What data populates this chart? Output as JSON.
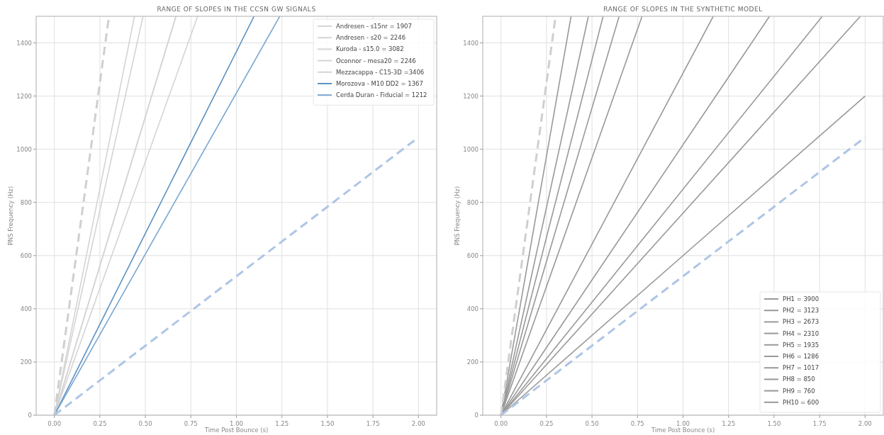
{
  "chart_data": [
    {
      "type": "line",
      "title": "RANGE OF SLOPES IN THE CCSN GW SIGNALS",
      "xlabel": "Time Post Bounce (s)",
      "ylabel": "PNS Frequency (Hz)",
      "xlim": [
        -0.1,
        2.1
      ],
      "ylim": [
        0,
        1500
      ],
      "xticks": [
        {
          "value": 0,
          "label": "0.00"
        },
        {
          "value": 0.25,
          "label": "0.25"
        },
        {
          "value": 0.5,
          "label": "0.50"
        },
        {
          "value": 0.75,
          "label": "0.75"
        },
        {
          "value": 1,
          "label": "1.00"
        },
        {
          "value": 1.25,
          "label": "1.25"
        },
        {
          "value": 1.5,
          "label": "1.50"
        },
        {
          "value": 1.75,
          "label": "1.75"
        },
        {
          "value": 2,
          "label": "2.00"
        }
      ],
      "yticks": [
        0,
        200,
        400,
        600,
        800,
        1000,
        1200,
        1400
      ],
      "grid": true,
      "legend": "top right",
      "series": [
        {
          "name": "Andresen - s15nr = 1907",
          "color": "#d4d4d4",
          "x": [
            0,
            0.787
          ],
          "values": [
            0,
            1500
          ]
        },
        {
          "name": "Andresen - s20 = 2246",
          "color": "#d4d4d4",
          "x": [
            0,
            0.668
          ],
          "values": [
            0,
            1500
          ]
        },
        {
          "name": "Kuroda - s15.0 = 3082",
          "color": "#d4d4d4",
          "x": [
            0,
            0.487
          ],
          "values": [
            0,
            1500
          ]
        },
        {
          "name": "Oconnor - mesa20 = 2246",
          "color": "#d4d4d4",
          "x": [
            0,
            0.668
          ],
          "values": [
            0,
            1500
          ]
        },
        {
          "name": "Mezzacappa - C15-3D =3406",
          "color": "#d4d4d4",
          "x": [
            0,
            0.44
          ],
          "values": [
            0,
            1500
          ]
        },
        {
          "name": "Morozova - M10 DD2 = 1367",
          "color": "#5b93c4",
          "x": [
            0,
            1.097
          ],
          "values": [
            0,
            1500
          ]
        },
        {
          "name": "Cerda Duran - Fiducial = 1212",
          "color": "#7aa7d0",
          "x": [
            0,
            1.238
          ],
          "values": [
            0,
            1500
          ]
        },
        {
          "color": "#cfcfcf",
          "line_style": "dashed",
          "x": [
            0,
            0.3
          ],
          "values": [
            0,
            1500
          ]
        },
        {
          "color": "#aec6e6",
          "line_style": "dashed",
          "x": [
            0,
            2
          ],
          "values": [
            0,
            1045
          ]
        }
      ]
    },
    {
      "type": "line",
      "title": "RANGE OF SLOPES IN THE SYNTHETIC MODEL",
      "xlabel": "Time Post Bounce (s)",
      "ylabel": "PNS Frequency (Hz)",
      "xlim": [
        -0.1,
        2.1
      ],
      "ylim": [
        0,
        1500
      ],
      "xticks": [
        {
          "value": 0,
          "label": "0.00"
        },
        {
          "value": 0.25,
          "label": "0.25"
        },
        {
          "value": 0.5,
          "label": "0.50"
        },
        {
          "value": 0.75,
          "label": "0.75"
        },
        {
          "value": 1,
          "label": "1.00"
        },
        {
          "value": 1.25,
          "label": "1.25"
        },
        {
          "value": 1.5,
          "label": "1.50"
        },
        {
          "value": 1.75,
          "label": "1.75"
        },
        {
          "value": 2,
          "label": "2.00"
        }
      ],
      "yticks": [
        0,
        200,
        400,
        600,
        800,
        1000,
        1200,
        1400
      ],
      "grid": true,
      "legend": "bottom right",
      "series": [
        {
          "name": "PH1 = 3900",
          "color": "#999999",
          "x": [
            0,
            0.385
          ],
          "values": [
            0,
            1500
          ]
        },
        {
          "name": "PH2 = 3123",
          "color": "#999999",
          "x": [
            0,
            0.48
          ],
          "values": [
            0,
            1500
          ]
        },
        {
          "name": "PH3 = 2673",
          "color": "#999999",
          "x": [
            0,
            0.561
          ],
          "values": [
            0,
            1500
          ]
        },
        {
          "name": "PH4 = 2310",
          "color": "#999999",
          "x": [
            0,
            0.649
          ],
          "values": [
            0,
            1500
          ]
        },
        {
          "name": "PH5 = 1935",
          "color": "#999999",
          "x": [
            0,
            0.775
          ],
          "values": [
            0,
            1500
          ]
        },
        {
          "name": "PH6 = 1286",
          "color": "#999999",
          "x": [
            0,
            1.166
          ],
          "values": [
            0,
            1500
          ]
        },
        {
          "name": "PH7 = 1017",
          "color": "#999999",
          "x": [
            0,
            1.475
          ],
          "values": [
            0,
            1500
          ]
        },
        {
          "name": "PH8 = 850",
          "color": "#999999",
          "x": [
            0,
            1.765
          ],
          "values": [
            0,
            1500
          ]
        },
        {
          "name": "PH9 = 760",
          "color": "#999999",
          "x": [
            0,
            1.974
          ],
          "values": [
            0,
            1500
          ]
        },
        {
          "name": "PH10 = 600",
          "color": "#999999",
          "x": [
            0,
            2
          ],
          "values": [
            0,
            1200
          ]
        },
        {
          "color": "#cfcfcf",
          "line_style": "dashed",
          "x": [
            0,
            0.3
          ],
          "values": [
            0,
            1500
          ]
        },
        {
          "color": "#aec6e6",
          "line_style": "dashed",
          "x": [
            0,
            2
          ],
          "values": [
            0,
            1045
          ]
        }
      ]
    }
  ]
}
